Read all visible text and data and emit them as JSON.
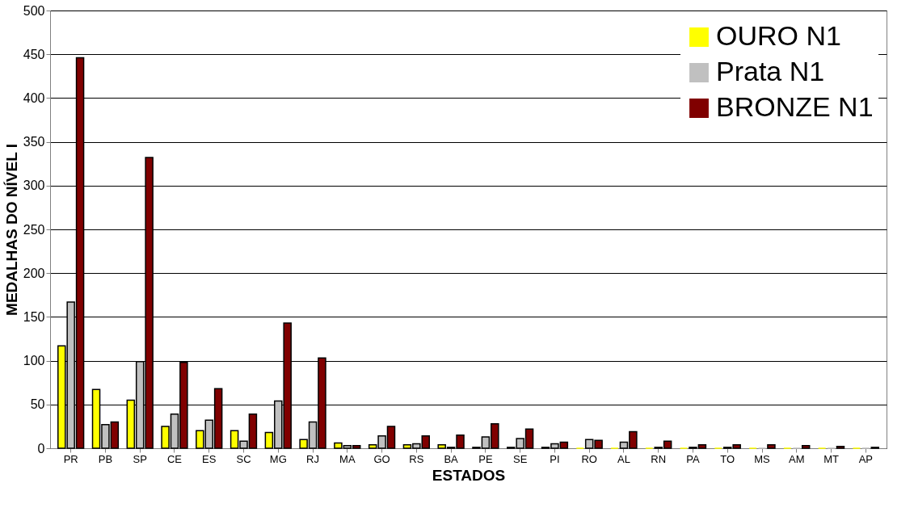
{
  "chart_data": {
    "type": "bar",
    "xlabel": "ESTADOS",
    "ylabel": "MEDALHAS DO NÍVEL I",
    "categories": [
      "PR",
      "PB",
      "SP",
      "CE",
      "ES",
      "SC",
      "MG",
      "RJ",
      "MA",
      "GO",
      "RS",
      "BA",
      "PE",
      "SE",
      "PI",
      "RO",
      "AL",
      "RN",
      "PA",
      "TO",
      "MS",
      "AM",
      "MT",
      "AP"
    ],
    "series": [
      {
        "name": "OURO N1",
        "color": "#ffff00",
        "values": [
          117,
          67,
          55,
          25,
          20,
          20,
          18,
          10,
          6,
          4,
          4,
          4,
          1,
          1,
          1,
          0,
          0,
          0,
          0,
          0,
          0,
          0,
          0,
          0
        ]
      },
      {
        "name": "Prata N1",
        "color": "#c0c0c0",
        "values": [
          167,
          27,
          99,
          39,
          32,
          8,
          54,
          30,
          3,
          14,
          5,
          1,
          13,
          11,
          5,
          10,
          7,
          1,
          1,
          1,
          0,
          0,
          0,
          0
        ]
      },
      {
        "name": "BRONZE N1",
        "color": "#800000",
        "values": [
          446,
          30,
          332,
          98,
          68,
          39,
          143,
          103,
          3,
          25,
          14,
          15,
          28,
          22,
          7,
          9,
          19,
          8,
          4,
          4,
          4,
          3,
          2,
          1
        ]
      }
    ],
    "ylim": [
      0,
      500
    ],
    "yticks": [
      0,
      50,
      100,
      150,
      200,
      250,
      300,
      350,
      400,
      450,
      500
    ],
    "grid": "y",
    "legend": "top right"
  }
}
